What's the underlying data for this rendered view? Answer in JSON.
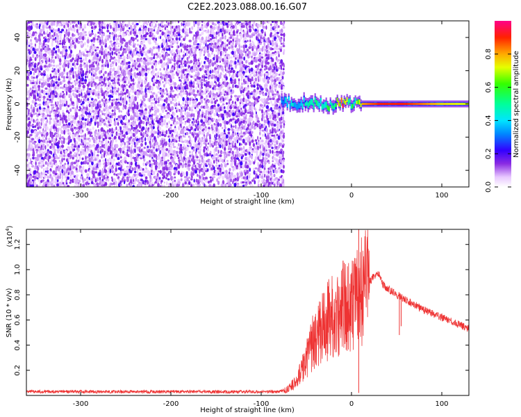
{
  "figure": {
    "title": "C2E2.2023.088.00.16.G07"
  },
  "chart_data": [
    {
      "type": "heatmap",
      "panel": "top",
      "xlabel": "Height of straight line (km)",
      "ylabel": "Frequency (Hz)",
      "xlim": [
        -360,
        130
      ],
      "ylim": [
        -50,
        50
      ],
      "xticks": [
        -300,
        -200,
        -100,
        0,
        100
      ],
      "xtick_labels": [
        "-300",
        "-200",
        "-100",
        "0",
        "100"
      ],
      "yticks": [
        -40,
        -20,
        0,
        20,
        40
      ],
      "ytick_labels": [
        "-40",
        "-20",
        "0",
        "20",
        "40"
      ],
      "noise_region_x": [
        -360,
        -78
      ],
      "signal_track": {
        "x": [
          -78,
          -70,
          -60,
          -50,
          -40,
          -30,
          -20,
          -10,
          0,
          10,
          30,
          60,
          100,
          130
        ],
        "center_freq": [
          2,
          1,
          0,
          1,
          1,
          -1,
          0,
          0,
          1,
          0,
          0,
          0,
          0,
          0
        ],
        "amplitude": [
          0.35,
          0.45,
          0.4,
          0.5,
          0.5,
          0.55,
          0.65,
          0.9,
          0.55,
          0.8,
          0.9,
          0.9,
          0.75,
          0.7
        ]
      },
      "colorbar": {
        "label": "Normalized spectral amplitude",
        "range": [
          0,
          1
        ],
        "ticks": [
          0.0,
          0.2,
          0.4,
          0.6,
          0.8
        ],
        "tick_labels": [
          "0.0",
          "0.2",
          "0.4",
          "0.6",
          "0.8"
        ]
      },
      "grid": false
    },
    {
      "type": "line",
      "panel": "bottom",
      "xlabel": "Height of straight line (km)",
      "ylabel": "SNR (10 * v/v)",
      "scale_note": "(x10",
      "scale_exp": "4",
      "scale_close": ")",
      "xlim": [
        -360,
        130
      ],
      "ylim": [
        0,
        1.32
      ],
      "xticks": [
        -300,
        -200,
        -100,
        0,
        100
      ],
      "xtick_labels": [
        "-300",
        "-200",
        "-100",
        "0",
        "100"
      ],
      "yticks": [
        0.2,
        0.4,
        0.6,
        0.8,
        1.0,
        1.2
      ],
      "ytick_labels": [
        "0.2",
        "0.4",
        "0.6",
        "0.8",
        "1.0",
        "1.2"
      ],
      "color": "#ee3333",
      "series": [
        {
          "x": [
            -360,
            -300,
            -200,
            -150,
            -100,
            -80,
            -70,
            -60,
            -50,
            -45,
            -40,
            -35,
            -30,
            -25,
            -20,
            -15,
            -10,
            -5,
            0,
            5,
            10,
            15,
            20,
            25,
            30,
            35,
            40,
            50,
            60,
            70,
            80,
            90,
            100,
            110,
            120,
            130
          ],
          "y": [
            0.03,
            0.03,
            0.03,
            0.03,
            0.03,
            0.03,
            0.05,
            0.12,
            0.3,
            0.4,
            0.45,
            0.5,
            0.55,
            0.6,
            0.62,
            0.65,
            0.7,
            0.75,
            0.7,
            0.8,
            0.82,
            0.85,
            0.9,
            0.95,
            0.97,
            0.88,
            0.85,
            0.8,
            0.76,
            0.72,
            0.68,
            0.65,
            0.62,
            0.59,
            0.56,
            0.53
          ]
        }
      ],
      "spikes": [
        {
          "x": 8,
          "y": 1.32
        },
        {
          "x": 8,
          "y": 0.02
        },
        {
          "x": 53,
          "y": 0.48
        },
        {
          "x": 55,
          "y": 0.55
        }
      ],
      "grid": false
    }
  ]
}
